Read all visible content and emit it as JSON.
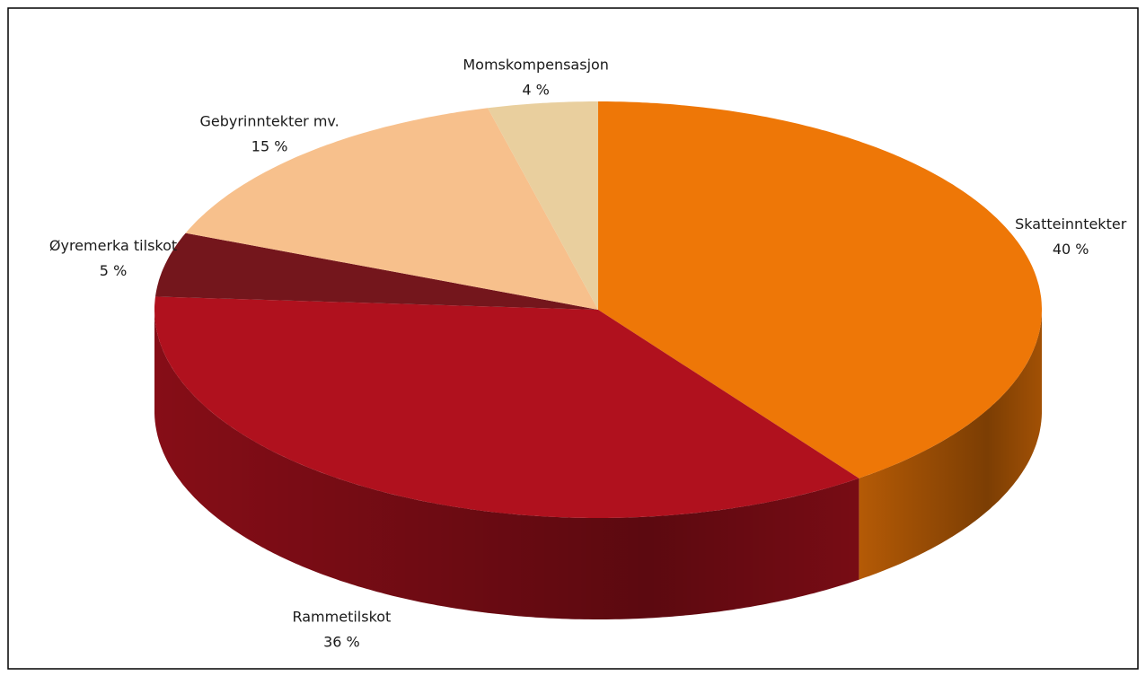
{
  "chart_data": {
    "type": "pie",
    "categories": [
      "Skatteinntekter",
      "Rammetilskot",
      "Øyremerka tilskot",
      "Gebyrinntekter mv.",
      "Momskompensasjon"
    ],
    "values": [
      40,
      36,
      5,
      15,
      4
    ],
    "value_labels": [
      "40 %",
      "36 %",
      "5 %",
      "15 %",
      "4 %"
    ],
    "colors": [
      "#ee7707",
      "#b0111e",
      "#74161c",
      "#f7c08c",
      "#e9cf9e"
    ]
  }
}
